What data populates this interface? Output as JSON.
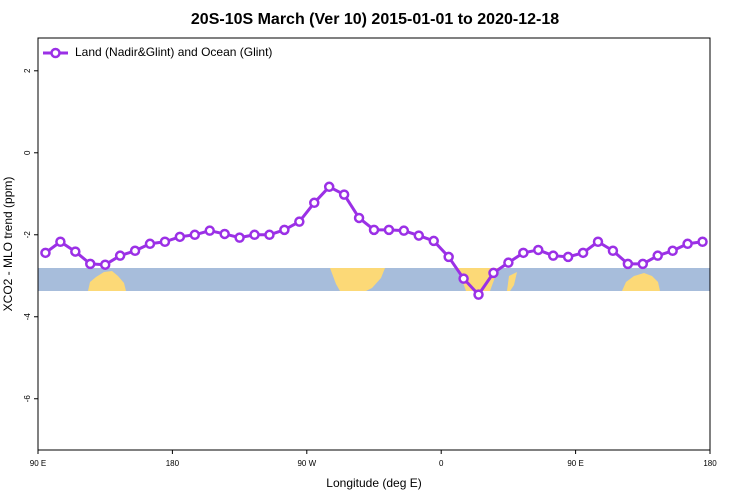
{
  "chart_data": {
    "type": "line",
    "title": "20S-10S March (Ver 10)   2015-01-01 to 2020-12-18",
    "x_label": "Longitude (deg E)",
    "y_label": "XCO2 - MLO trend (ppm)",
    "x": [
      95,
      105,
      115,
      125,
      135,
      145,
      155,
      165,
      175,
      185,
      195,
      205,
      215,
      225,
      235,
      245,
      255,
      265,
      275,
      285,
      295,
      305,
      315,
      325,
      335,
      345,
      355,
      365,
      375,
      385,
      395,
      405,
      415,
      425,
      435,
      445,
      455,
      465,
      475,
      485,
      495,
      505,
      515,
      525,
      535
    ],
    "series": [
      {
        "name": "Land (Nadir&Glint) and Ocean (Glint)",
        "color": "#9b30e6",
        "values": [
          -2.44,
          -2.17,
          -2.41,
          -2.71,
          -2.73,
          -2.51,
          -2.39,
          -2.22,
          -2.17,
          -2.05,
          -2.0,
          -1.9,
          -1.98,
          -2.07,
          -2.0,
          -2.0,
          -1.88,
          -1.68,
          -1.22,
          -0.83,
          -1.02,
          -1.59,
          -1.88,
          -1.88,
          -1.9,
          -2.02,
          -2.15,
          -2.54,
          -3.07,
          -3.46,
          -2.93,
          -2.68,
          -2.44,
          -2.37,
          -2.51,
          -2.54,
          -2.44,
          -2.17,
          -2.39,
          -2.71,
          -2.71,
          -2.51,
          -2.39,
          -2.22,
          -2.17
        ]
      }
    ],
    "xlim": [
      90,
      540
    ],
    "xticks": [
      {
        "value": 90,
        "label": "90 E"
      },
      {
        "value": 180,
        "label": "180"
      },
      {
        "value": 270,
        "label": "90 W"
      },
      {
        "value": 360,
        "label": "0"
      },
      {
        "value": 450,
        "label": "90 E"
      },
      {
        "value": 540,
        "label": "180"
      }
    ],
    "ylim": [
      -7.25,
      2.8
    ],
    "yticks": [
      -6,
      -4,
      -2,
      0,
      2
    ],
    "legend": "top-left"
  }
}
